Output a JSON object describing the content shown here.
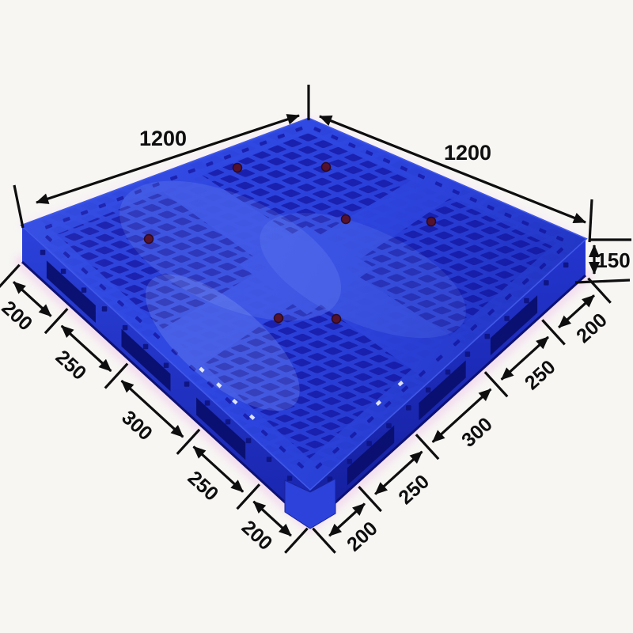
{
  "figure": {
    "subject": "blue plastic pallet",
    "view": "three-quarter product photo with dimension annotations"
  },
  "annotations": {
    "top_left_length": "1200",
    "top_right_length": "1200",
    "height": "150",
    "left_edge_segments": [
      "200",
      "250",
      "300",
      "250",
      "200"
    ],
    "right_edge_segments": [
      "200",
      "250",
      "300",
      "250",
      "200"
    ]
  },
  "colors": {
    "background": "#f7f6f3",
    "deck_rib": "#2c42dc",
    "deck_hole": "#1a20ae",
    "deck_runner": "#3049e2",
    "deck_edge": "#4058e8",
    "wall_left_top": "#2b41da",
    "wall_left_bottom": "#1824ad",
    "wall_right_top": "#2335cf",
    "wall_right_bottom": "#141e9c",
    "wall_hole": "#0f1584",
    "fork_pocket": "#0a0f6e",
    "rim_pink": "#f7e7f6",
    "shadow_pink": "#f1c9ec",
    "plug": "#581026",
    "dimension": "#0e0e0e"
  }
}
